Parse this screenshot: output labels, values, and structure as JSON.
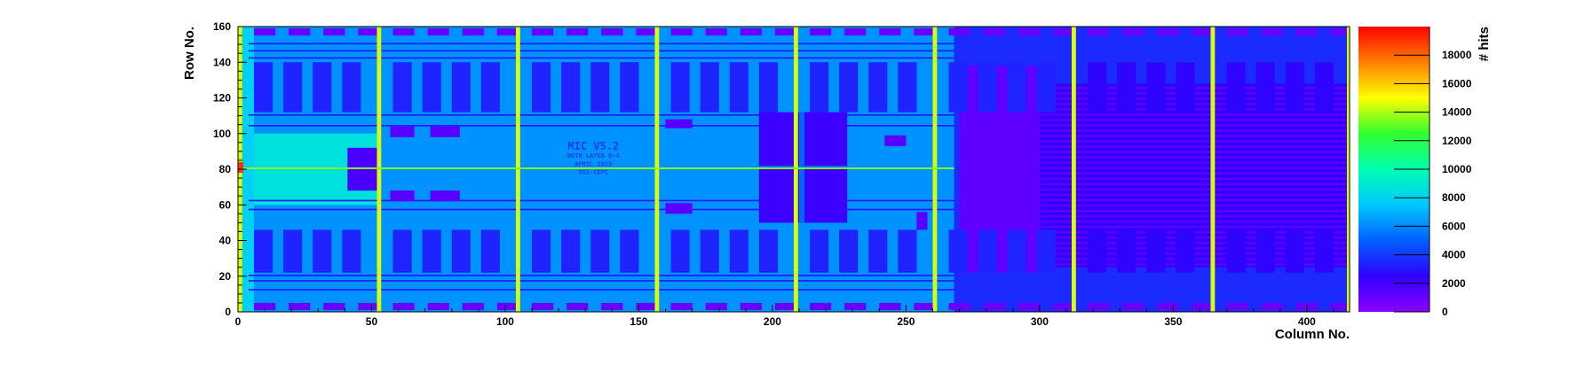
{
  "chart_data": {
    "type": "heatmap",
    "title": "",
    "xlabel": "Column No.",
    "ylabel": "Row No.",
    "zlabel": "# hits",
    "xlim": [
      0,
      416
    ],
    "ylim": [
      0,
      160
    ],
    "zlim": [
      0,
      20000
    ],
    "x_ticks": [
      0,
      50,
      100,
      150,
      200,
      250,
      300,
      350,
      400
    ],
    "y_ticks": [
      0,
      20,
      40,
      60,
      80,
      100,
      120,
      140,
      160
    ],
    "z_ticks": [
      0,
      2000,
      4000,
      6000,
      8000,
      10000,
      12000,
      14000,
      16000,
      18000
    ],
    "hot_columns": [
      0,
      52,
      104,
      156,
      208,
      260,
      312,
      364,
      415
    ],
    "hot_row": 80,
    "overlay_text": [
      "MIC V5.2",
      "BOTH LAYER 0-4",
      "APRIL 2023",
      "GSI-CEPC"
    ],
    "colormap": [
      "#8B00FF",
      "#3000FF",
      "#0060FF",
      "#00C8FF",
      "#00FFB0",
      "#30FF30",
      "#FFFF00",
      "#FF8000",
      "#FF0000"
    ]
  }
}
